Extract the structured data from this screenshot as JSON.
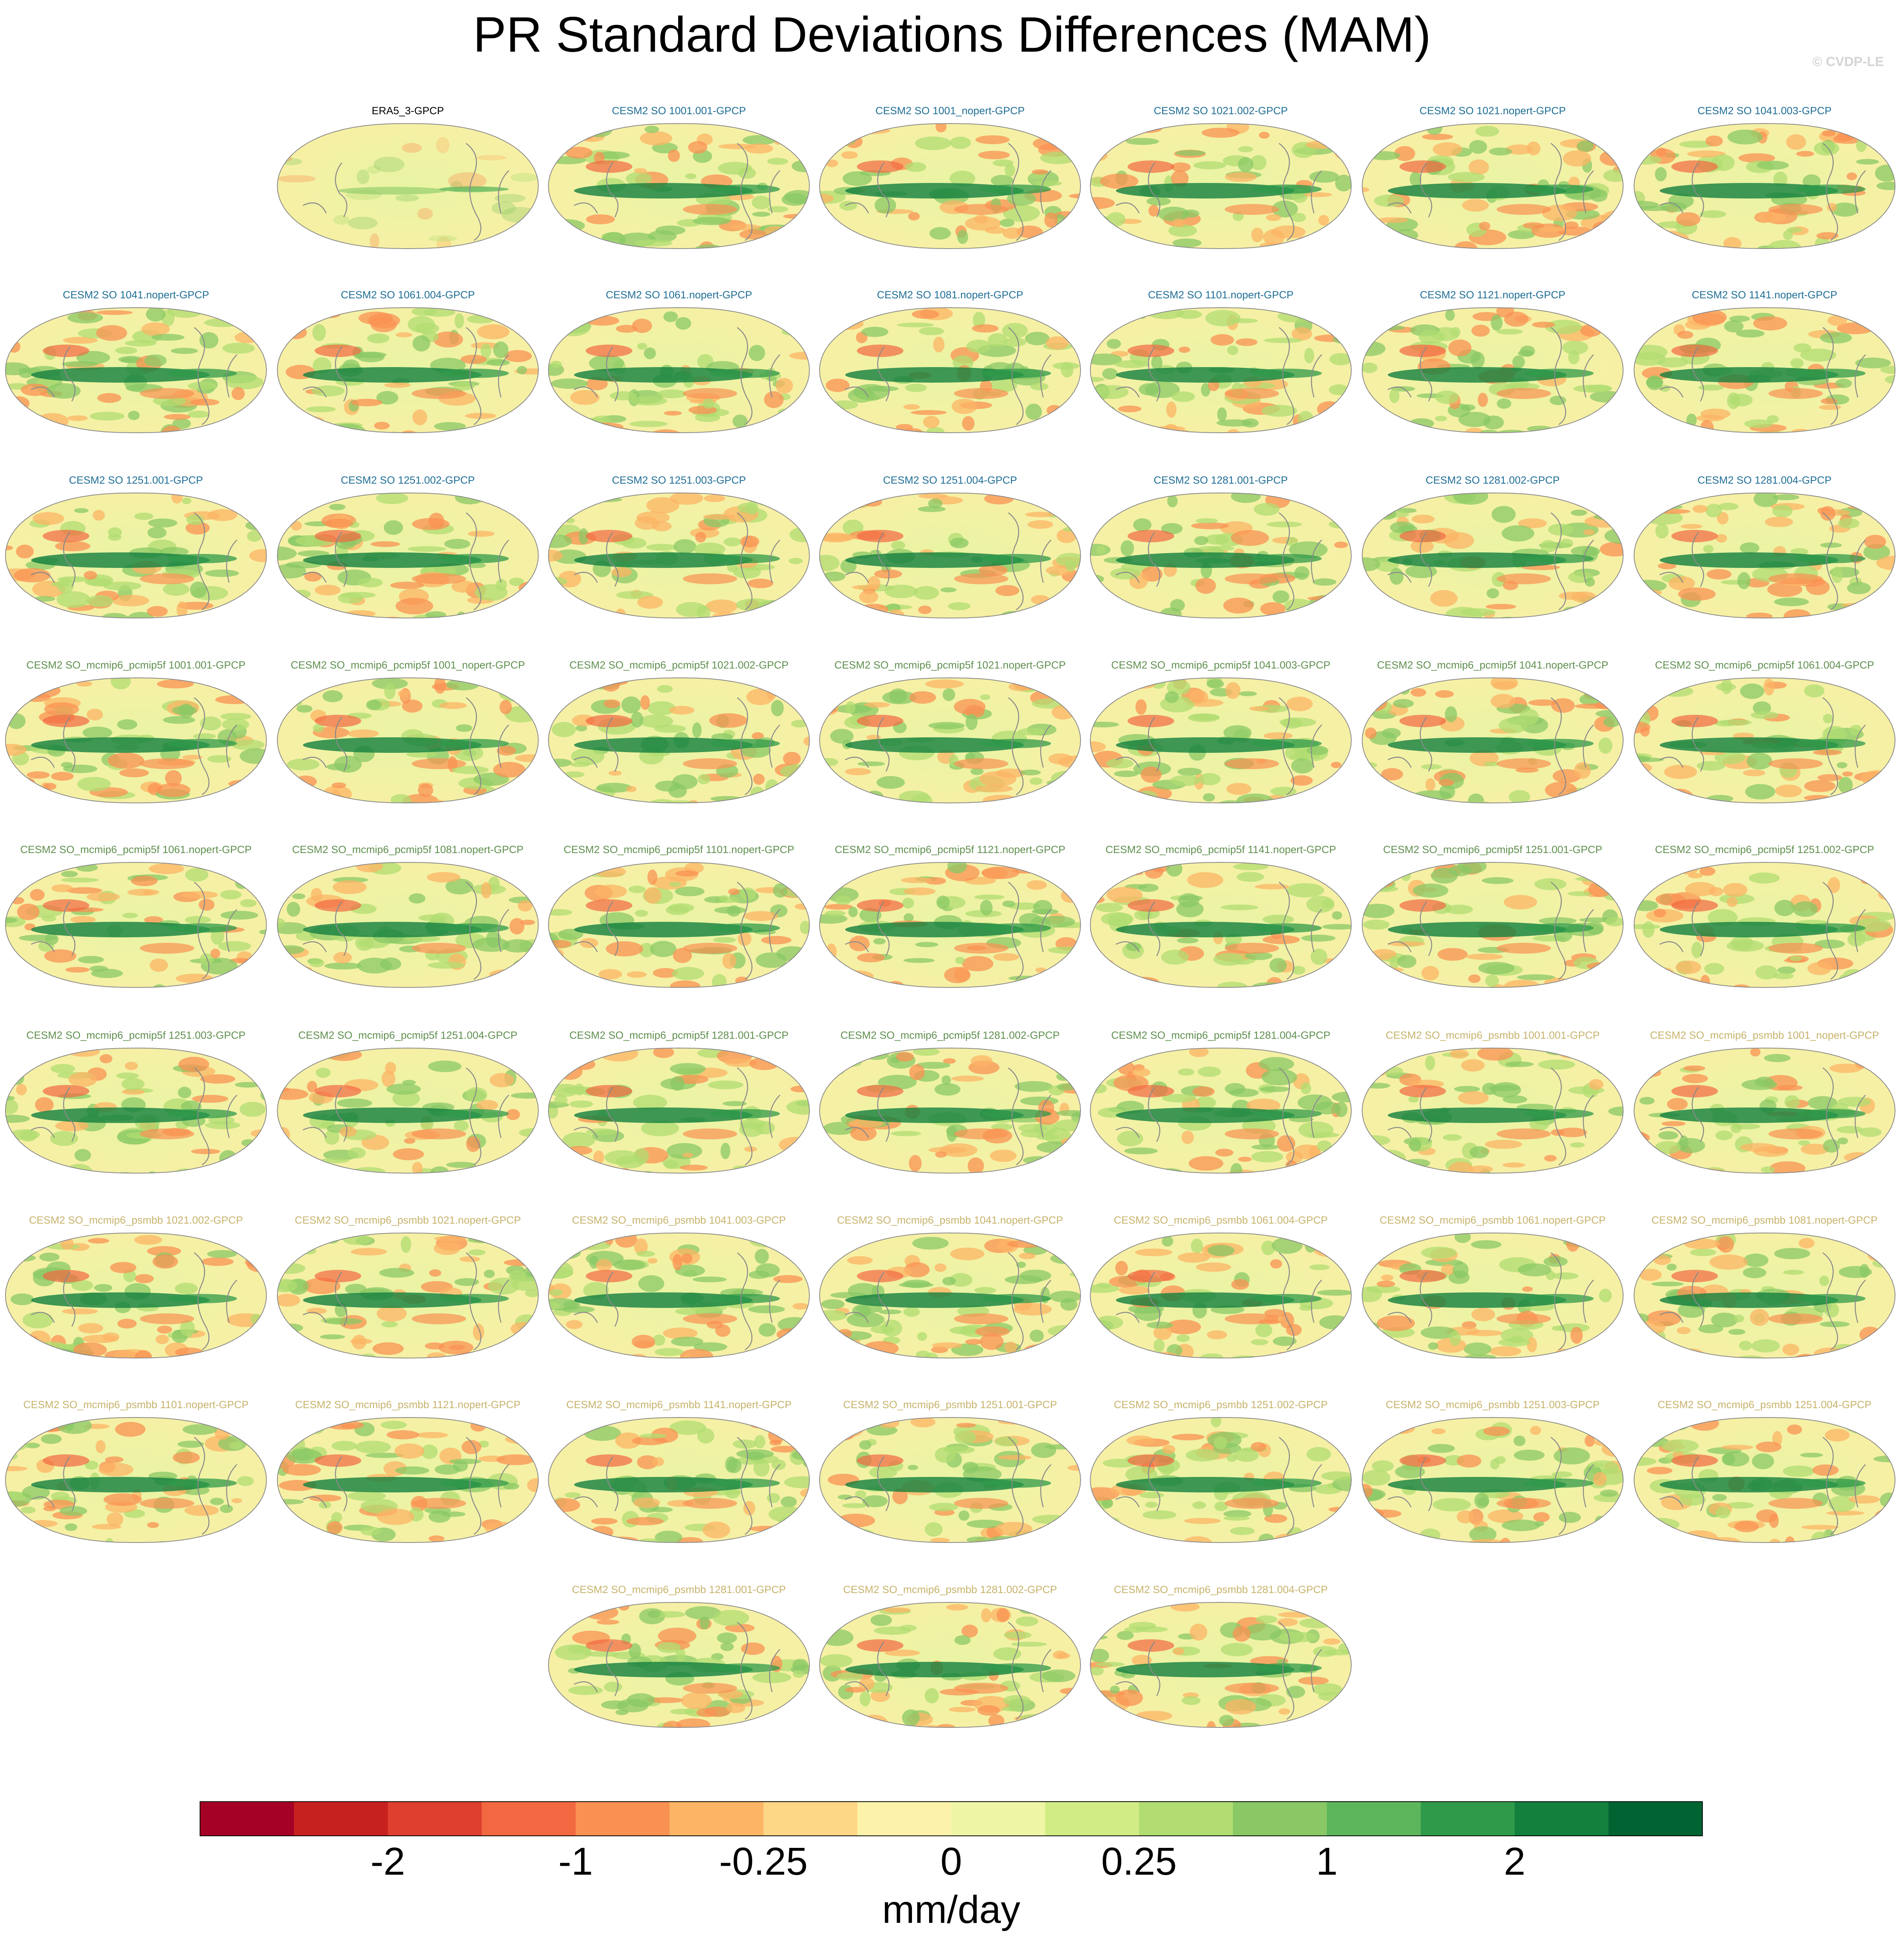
{
  "title": "PR Standard Deviations Differences (MAM)",
  "copyright": "© CVDP-LE",
  "colors": {
    "group_obs": "#000000",
    "group_cesm2_so": "#1f6e96",
    "group_pcmip5f": "#5f8f4e",
    "group_psmbb": "#c7b36b",
    "land_outline": "#8a8a8a",
    "map_border": "#888888"
  },
  "chart_data": {
    "type": "heatmap",
    "title": "PR Standard Deviations Differences (MAM)",
    "projection": "robinson",
    "variable": "PR",
    "season": "MAM",
    "units": "mm/day",
    "panels": [
      {
        "label": "ERA5_3-GPCP",
        "group": "obs"
      },
      {
        "label": "CESM2 SO 1001.001-GPCP",
        "group": "cesm2_so"
      },
      {
        "label": "CESM2 SO 1001_nopert-GPCP",
        "group": "cesm2_so"
      },
      {
        "label": "CESM2 SO 1021.002-GPCP",
        "group": "cesm2_so"
      },
      {
        "label": "CESM2 SO 1021.nopert-GPCP",
        "group": "cesm2_so"
      },
      {
        "label": "CESM2 SO 1041.003-GPCP",
        "group": "cesm2_so"
      },
      {
        "label": "CESM2 SO 1041.nopert-GPCP",
        "group": "cesm2_so"
      },
      {
        "label": "CESM2 SO 1061.004-GPCP",
        "group": "cesm2_so"
      },
      {
        "label": "CESM2 SO 1061.nopert-GPCP",
        "group": "cesm2_so"
      },
      {
        "label": "CESM2 SO 1081.nopert-GPCP",
        "group": "cesm2_so"
      },
      {
        "label": "CESM2 SO 1101.nopert-GPCP",
        "group": "cesm2_so"
      },
      {
        "label": "CESM2 SO 1121.nopert-GPCP",
        "group": "cesm2_so"
      },
      {
        "label": "CESM2 SO 1141.nopert-GPCP",
        "group": "cesm2_so"
      },
      {
        "label": "CESM2 SO 1251.001-GPCP",
        "group": "cesm2_so"
      },
      {
        "label": "CESM2 SO 1251.002-GPCP",
        "group": "cesm2_so"
      },
      {
        "label": "CESM2 SO 1251.003-GPCP",
        "group": "cesm2_so"
      },
      {
        "label": "CESM2 SO 1251.004-GPCP",
        "group": "cesm2_so"
      },
      {
        "label": "CESM2 SO 1281.001-GPCP",
        "group": "cesm2_so"
      },
      {
        "label": "CESM2 SO 1281.002-GPCP",
        "group": "cesm2_so"
      },
      {
        "label": "CESM2 SO 1281.004-GPCP",
        "group": "cesm2_so"
      },
      {
        "label": "CESM2 SO_mcmip6_pcmip5f 1001.001-GPCP",
        "group": "pcmip5f"
      },
      {
        "label": "CESM2 SO_mcmip6_pcmip5f 1001_nopert-GPCP",
        "group": "pcmip5f"
      },
      {
        "label": "CESM2 SO_mcmip6_pcmip5f 1021.002-GPCP",
        "group": "pcmip5f"
      },
      {
        "label": "CESM2 SO_mcmip6_pcmip5f 1021.nopert-GPCP",
        "group": "pcmip5f"
      },
      {
        "label": "CESM2 SO_mcmip6_pcmip5f 1041.003-GPCP",
        "group": "pcmip5f"
      },
      {
        "label": "CESM2 SO_mcmip6_pcmip5f 1041.nopert-GPCP",
        "group": "pcmip5f"
      },
      {
        "label": "CESM2 SO_mcmip6_pcmip5f 1061.004-GPCP",
        "group": "pcmip5f"
      },
      {
        "label": "CESM2 SO_mcmip6_pcmip5f 1061.nopert-GPCP",
        "group": "pcmip5f"
      },
      {
        "label": "CESM2 SO_mcmip6_pcmip5f 1081.nopert-GPCP",
        "group": "pcmip5f"
      },
      {
        "label": "CESM2 SO_mcmip6_pcmip5f 1101.nopert-GPCP",
        "group": "pcmip5f"
      },
      {
        "label": "CESM2 SO_mcmip6_pcmip5f 1121.nopert-GPCP",
        "group": "pcmip5f"
      },
      {
        "label": "CESM2 SO_mcmip6_pcmip5f 1141.nopert-GPCP",
        "group": "pcmip5f"
      },
      {
        "label": "CESM2 SO_mcmip6_pcmip5f 1251.001-GPCP",
        "group": "pcmip5f"
      },
      {
        "label": "CESM2 SO_mcmip6_pcmip5f 1251.002-GPCP",
        "group": "pcmip5f"
      },
      {
        "label": "CESM2 SO_mcmip6_pcmip5f 1251.003-GPCP",
        "group": "pcmip5f"
      },
      {
        "label": "CESM2 SO_mcmip6_pcmip5f 1251.004-GPCP",
        "group": "pcmip5f"
      },
      {
        "label": "CESM2 SO_mcmip6_pcmip5f 1281.001-GPCP",
        "group": "pcmip5f"
      },
      {
        "label": "CESM2 SO_mcmip6_pcmip5f 1281.002-GPCP",
        "group": "pcmip5f"
      },
      {
        "label": "CESM2 SO_mcmip6_pcmip5f 1281.004-GPCP",
        "group": "pcmip5f"
      },
      {
        "label": "CESM2 SO_mcmip6_psmbb 1001.001-GPCP",
        "group": "psmbb"
      },
      {
        "label": "CESM2 SO_mcmip6_psmbb 1001_nopert-GPCP",
        "group": "psmbb"
      },
      {
        "label": "CESM2 SO_mcmip6_psmbb 1021.002-GPCP",
        "group": "psmbb"
      },
      {
        "label": "CESM2 SO_mcmip6_psmbb 1021.nopert-GPCP",
        "group": "psmbb"
      },
      {
        "label": "CESM2 SO_mcmip6_psmbb 1041.003-GPCP",
        "group": "psmbb"
      },
      {
        "label": "CESM2 SO_mcmip6_psmbb 1041.nopert-GPCP",
        "group": "psmbb"
      },
      {
        "label": "CESM2 SO_mcmip6_psmbb 1061.004-GPCP",
        "group": "psmbb"
      },
      {
        "label": "CESM2 SO_mcmip6_psmbb 1061.nopert-GPCP",
        "group": "psmbb"
      },
      {
        "label": "CESM2 SO_mcmip6_psmbb 1081.nopert-GPCP",
        "group": "psmbb"
      },
      {
        "label": "CESM2 SO_mcmip6_psmbb 1101.nopert-GPCP",
        "group": "psmbb"
      },
      {
        "label": "CESM2 SO_mcmip6_psmbb 1121.nopert-GPCP",
        "group": "psmbb"
      },
      {
        "label": "CESM2 SO_mcmip6_psmbb 1141.nopert-GPCP",
        "group": "psmbb"
      },
      {
        "label": "CESM2 SO_mcmip6_psmbb 1251.001-GPCP",
        "group": "psmbb"
      },
      {
        "label": "CESM2 SO_mcmip6_psmbb 1251.002-GPCP",
        "group": "psmbb"
      },
      {
        "label": "CESM2 SO_mcmip6_psmbb 1251.003-GPCP",
        "group": "psmbb"
      },
      {
        "label": "CESM2 SO_mcmip6_psmbb 1251.004-GPCP",
        "group": "psmbb"
      },
      {
        "label": "CESM2 SO_mcmip6_psmbb 1281.001-GPCP",
        "group": "psmbb"
      },
      {
        "label": "CESM2 SO_mcmip6_psmbb 1281.002-GPCP",
        "group": "psmbb"
      },
      {
        "label": "CESM2 SO_mcmip6_psmbb 1281.004-GPCP",
        "group": "psmbb"
      }
    ],
    "colorbar": {
      "label": "mm/day",
      "tick_labels": [
        "-2",
        "-1",
        "-0.25",
        "0",
        "0.25",
        "1",
        "2"
      ],
      "colors": [
        "#a50026",
        "#c7211f",
        "#de3f2e",
        "#f26841",
        "#f99153",
        "#fcb465",
        "#fdd686",
        "#fdf2aa",
        "#eef6a6",
        "#d2ec85",
        "#b0dc72",
        "#89c865",
        "#5db55c",
        "#2f9a4a",
        "#13803e",
        "#006331"
      ]
    }
  }
}
